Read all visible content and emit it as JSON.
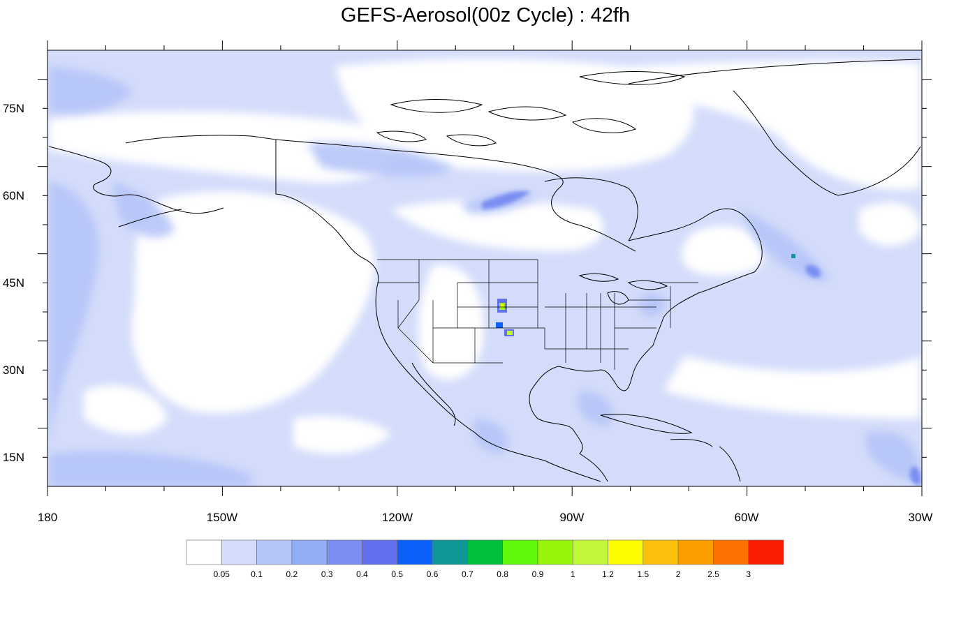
{
  "title": "GEFS-Aerosol(00z Cycle) : 42fh",
  "lon_labels": [
    "180",
    "150W",
    "120W",
    "90W",
    "60W",
    "30W"
  ],
  "lat_labels": [
    "75N",
    "60N",
    "45N",
    "30N",
    "15N"
  ],
  "colorbar": {
    "colors": [
      "#ffffff",
      "#d3dcfa",
      "#b5c5f8",
      "#92aef5",
      "#7a8ef2",
      "#6570ee",
      "#0c61fb",
      "#0f9696",
      "#00c13b",
      "#5ff80a",
      "#97f40b",
      "#c3f739",
      "#fdfd00",
      "#fbc00b",
      "#fc9e00",
      "#fa7101",
      "#fa1d00"
    ],
    "labels": [
      "0.05",
      "0.1",
      "0.2",
      "0.3",
      "0.4",
      "0.5",
      "0.6",
      "0.7",
      "0.8",
      "0.9",
      "1",
      "1.2",
      "1.5",
      "2",
      "2.5",
      "3"
    ]
  }
}
